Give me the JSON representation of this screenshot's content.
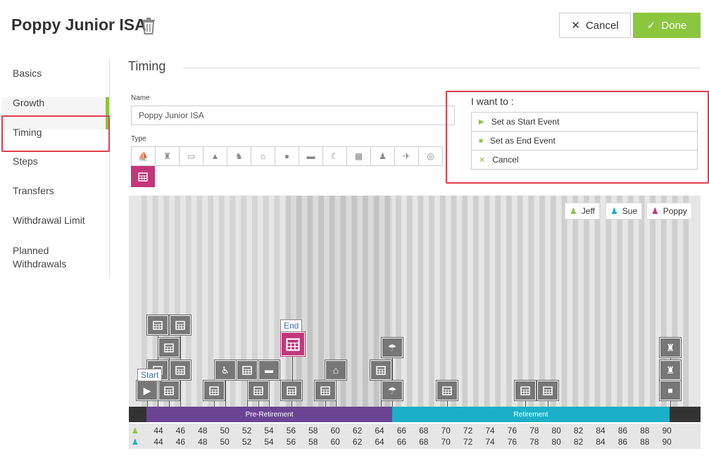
{
  "header": {
    "title": "Poppy Junior ISA",
    "cancel_label": "Cancel",
    "done_label": "Done"
  },
  "sidebar": {
    "items": [
      {
        "label": "Basics"
      },
      {
        "label": "Growth"
      },
      {
        "label": "Timing"
      },
      {
        "label": "Steps"
      },
      {
        "label": "Transfers"
      },
      {
        "label": "Withdrawal Limit"
      },
      {
        "label": "Planned Withdrawals"
      }
    ],
    "active": "Timing"
  },
  "main": {
    "section_title": "Timing",
    "name_label": "Name",
    "name_value": "Poppy Junior ISA",
    "type_label": "Type"
  },
  "want_panel": {
    "title": "I want to :",
    "options": [
      {
        "label": "Set as Start Event"
      },
      {
        "label": "Set as End Event"
      },
      {
        "label": "Cancel"
      }
    ]
  },
  "legend": [
    {
      "name": "Jeff",
      "color": "#8cc63f"
    },
    {
      "name": "Sue",
      "color": "#1ab0c8"
    },
    {
      "name": "Poppy",
      "color": "#c2367a"
    }
  ],
  "phases": [
    {
      "label": "Pre-Retirement",
      "color": "#6b4593"
    },
    {
      "label": "Retirement",
      "color": "#1ab0c8"
    }
  ],
  "callouts": {
    "start": "Start",
    "end": "End"
  },
  "ages": [
    "44",
    "46",
    "48",
    "50",
    "52",
    "54",
    "56",
    "58",
    "60",
    "62",
    "64",
    "66",
    "68",
    "70",
    "72",
    "74",
    "76",
    "78",
    "80",
    "82",
    "84",
    "86",
    "88",
    "90"
  ]
}
